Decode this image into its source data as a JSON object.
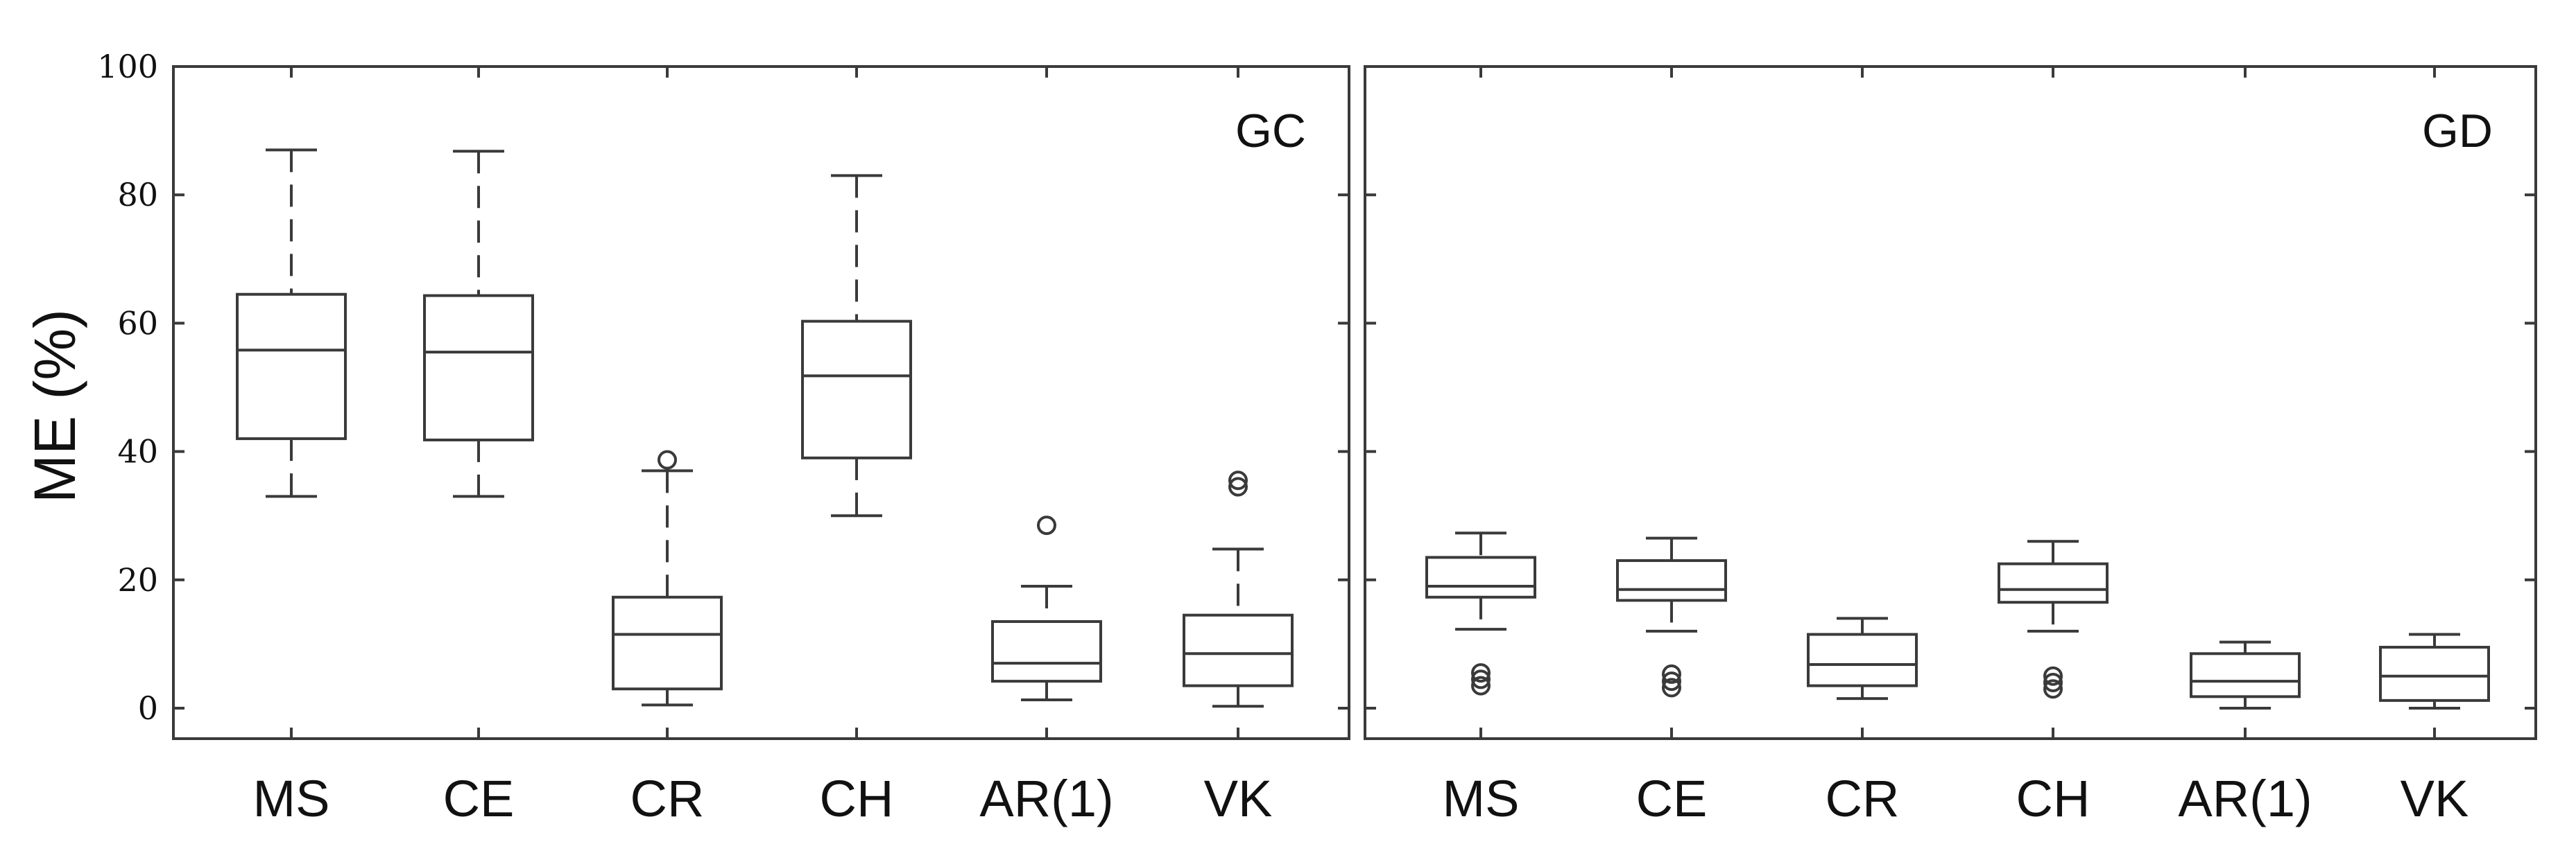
{
  "chart_data": {
    "type": "box",
    "ylabel": "ME (%)",
    "ylim": [
      -5,
      100
    ],
    "yticks": [
      "0",
      "20",
      "40",
      "60",
      "80",
      "100"
    ],
    "categories": [
      "MS",
      "CE",
      "CR",
      "CH",
      "AR(1)",
      "VK"
    ],
    "panels": [
      {
        "label": "GC",
        "boxes": [
          {
            "category": "MS",
            "min": 33,
            "q1": 42,
            "median": 55.8,
            "q3": 64.5,
            "max": 87,
            "outliers": []
          },
          {
            "category": "CE",
            "min": 33,
            "q1": 41.8,
            "median": 55.5,
            "q3": 64.3,
            "max": 86.8,
            "outliers": []
          },
          {
            "category": "CR",
            "min": 0.5,
            "q1": 3,
            "median": 11.5,
            "q3": 17.3,
            "max": 37,
            "outliers": [
              38.7
            ]
          },
          {
            "category": "CH",
            "min": 30,
            "q1": 39,
            "median": 51.8,
            "q3": 60.3,
            "max": 83,
            "outliers": []
          },
          {
            "category": "AR(1)",
            "min": 1.3,
            "q1": 4.2,
            "median": 7,
            "q3": 13.5,
            "max": 19,
            "outliers": [
              28.5
            ]
          },
          {
            "category": "VK",
            "min": 0.3,
            "q1": 3.5,
            "median": 8.5,
            "q3": 14.5,
            "max": 24.8,
            "outliers": [
              34.5,
              35.5
            ]
          }
        ]
      },
      {
        "label": "GD",
        "boxes": [
          {
            "category": "MS",
            "min": 12.3,
            "q1": 17.3,
            "median": 19,
            "q3": 23.5,
            "max": 27.3,
            "outliers": [
              3.5,
              4.5,
              5.5
            ]
          },
          {
            "category": "CE",
            "min": 12,
            "q1": 16.8,
            "median": 18.5,
            "q3": 23,
            "max": 26.5,
            "outliers": [
              3.2,
              4.2,
              5.3
            ]
          },
          {
            "category": "CR",
            "min": 1.5,
            "q1": 3.5,
            "median": 6.8,
            "q3": 11.5,
            "max": 14,
            "outliers": []
          },
          {
            "category": "CH",
            "min": 12,
            "q1": 16.5,
            "median": 18.5,
            "q3": 22.5,
            "max": 26,
            "outliers": [
              3,
              4,
              5
            ]
          },
          {
            "category": "AR(1)",
            "min": 0,
            "q1": 1.8,
            "median": 4.2,
            "q3": 8.5,
            "max": 10.3,
            "outliers": []
          },
          {
            "category": "VK",
            "min": 0,
            "q1": 1.2,
            "median": 5,
            "q3": 9.5,
            "max": 11.5,
            "outliers": []
          }
        ]
      }
    ]
  }
}
